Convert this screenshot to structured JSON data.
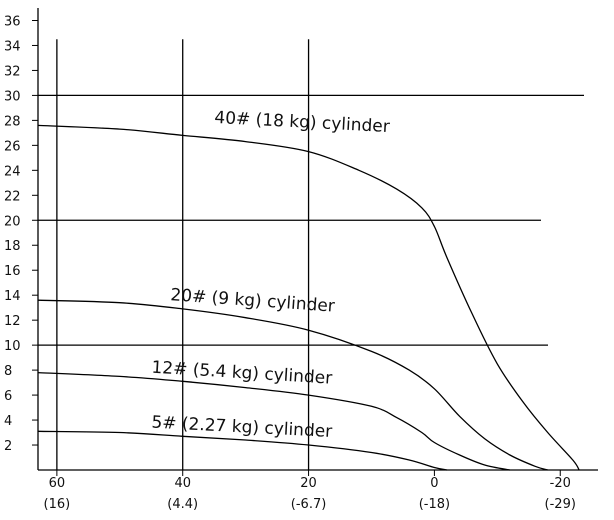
{
  "chart_data": {
    "type": "line",
    "title": "",
    "xlabel": "",
    "ylabel": "",
    "xlim": [
      63,
      -26
    ],
    "ylim": [
      0,
      37
    ],
    "x_ticks": [
      60,
      40,
      20,
      0,
      -20
    ],
    "x_tick_labels": [
      "60",
      "40",
      "20",
      "0",
      "-20"
    ],
    "x_tick_sublabels": [
      "(16)",
      "(4.4)",
      "(-6.7)",
      "(-18)",
      "(-29)"
    ],
    "y_ticks": [
      2,
      4,
      6,
      8,
      10,
      12,
      14,
      16,
      18,
      20,
      22,
      24,
      26,
      28,
      30,
      32,
      34,
      36
    ],
    "y_tick_labels": [
      "2",
      "4",
      "6",
      "8",
      "10",
      "12",
      "14",
      "16",
      "18",
      "20",
      "22",
      "24",
      "26",
      "28",
      "30",
      "32",
      "34",
      "36"
    ],
    "reference_lines": {
      "horizontal": [
        30,
        20,
        10
      ],
      "vertical": [
        60,
        40,
        20
      ]
    },
    "series": [
      {
        "name": "40# (18 kg) cylinder",
        "x": [
          63,
          50,
          40,
          30,
          20,
          12,
          6,
          2,
          0,
          -2,
          -6,
          -10,
          -14,
          -18,
          -22,
          -23
        ],
        "y": [
          27.6,
          27.3,
          26.8,
          26.3,
          25.5,
          24,
          22.5,
          21,
          19.5,
          17,
          12.5,
          8.5,
          5.5,
          3,
          0.8,
          0
        ]
      },
      {
        "name": "20# (9 kg) cylinder",
        "x": [
          63,
          50,
          40,
          30,
          20,
          10,
          4,
          0,
          -4,
          -8,
          -12,
          -16,
          -18
        ],
        "y": [
          13.6,
          13.4,
          12.9,
          12.2,
          11.2,
          9.5,
          8,
          6.5,
          4.3,
          2.5,
          1.2,
          0.3,
          0
        ]
      },
      {
        "name": "12# (5.4 kg) cylinder",
        "x": [
          63,
          50,
          40,
          30,
          20,
          10,
          6,
          2,
          0,
          -4,
          -8,
          -12
        ],
        "y": [
          7.8,
          7.5,
          7.1,
          6.6,
          6,
          5.1,
          4.2,
          3,
          2.2,
          1.2,
          0.4,
          0
        ]
      },
      {
        "name": "5# (2.27 kg) cylinder",
        "x": [
          63,
          50,
          40,
          30,
          20,
          10,
          4,
          0,
          -2
        ],
        "y": [
          3.1,
          3,
          2.7,
          2.4,
          2,
          1.4,
          0.8,
          0.2,
          0
        ]
      }
    ],
    "grid": false,
    "legend": "none"
  }
}
